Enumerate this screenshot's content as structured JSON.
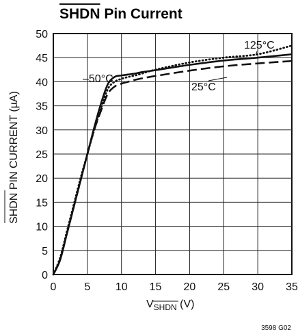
{
  "chart_data": {
    "type": "line",
    "title": "SHDN Pin Current",
    "title_overline_text": "SHDN",
    "title_rest": " Pin Current",
    "xlabel_main": "V",
    "xlabel_sub": "SHDN",
    "xlabel_unit": " (V)",
    "ylabel_overline_text": "SHDN",
    "ylabel_rest": " PIN CURRENT (µA)",
    "xlim": [
      0,
      35
    ],
    "ylim": [
      0,
      50
    ],
    "x_ticks": [
      0,
      5,
      10,
      15,
      20,
      25,
      30,
      35
    ],
    "y_ticks": [
      0,
      5,
      10,
      15,
      20,
      25,
      30,
      35,
      40,
      45,
      50
    ],
    "grid": true,
    "figure_id": "3598 G02",
    "series": [
      {
        "name": "–50°C",
        "style": "solid",
        "x": [
          0,
          1,
          2,
          3,
          4,
          5,
          6,
          7,
          8,
          9,
          10,
          11,
          12,
          13,
          15,
          20,
          25,
          30,
          35
        ],
        "y": [
          0,
          3,
          8.5,
          14,
          19.5,
          25,
          30.5,
          35.5,
          39.5,
          41,
          41.3,
          41.5,
          41.7,
          42,
          42.4,
          43.5,
          44.4,
          45.0,
          45.7
        ]
      },
      {
        "name": "25°C",
        "style": "dashed",
        "x": [
          0,
          1,
          2,
          3,
          4,
          5,
          6,
          7,
          8,
          9,
          10,
          11,
          12,
          13,
          15,
          20,
          25,
          30,
          35
        ],
        "y": [
          0,
          3.2,
          8.5,
          14,
          19.5,
          25,
          30,
          34,
          37.5,
          39,
          39.6,
          40,
          40.4,
          40.7,
          41.2,
          42.3,
          43.2,
          43.8,
          44.3
        ]
      },
      {
        "name": "125°C",
        "style": "dotted",
        "x": [
          0,
          1,
          2,
          3,
          4,
          5,
          6,
          7,
          8,
          9,
          10,
          11,
          12,
          13,
          15,
          20,
          25,
          30,
          35
        ],
        "y": [
          0,
          3.5,
          9,
          14.5,
          20,
          25,
          30,
          34.5,
          38.5,
          40,
          40.6,
          41,
          41.3,
          41.7,
          42.5,
          44.0,
          45.0,
          45.7,
          47.5
        ]
      }
    ],
    "annotations": [
      {
        "text": "–50°C",
        "series": "–50°C"
      },
      {
        "text": "25°C",
        "series": "25°C"
      },
      {
        "text": "125°C",
        "series": "125°C"
      }
    ]
  }
}
